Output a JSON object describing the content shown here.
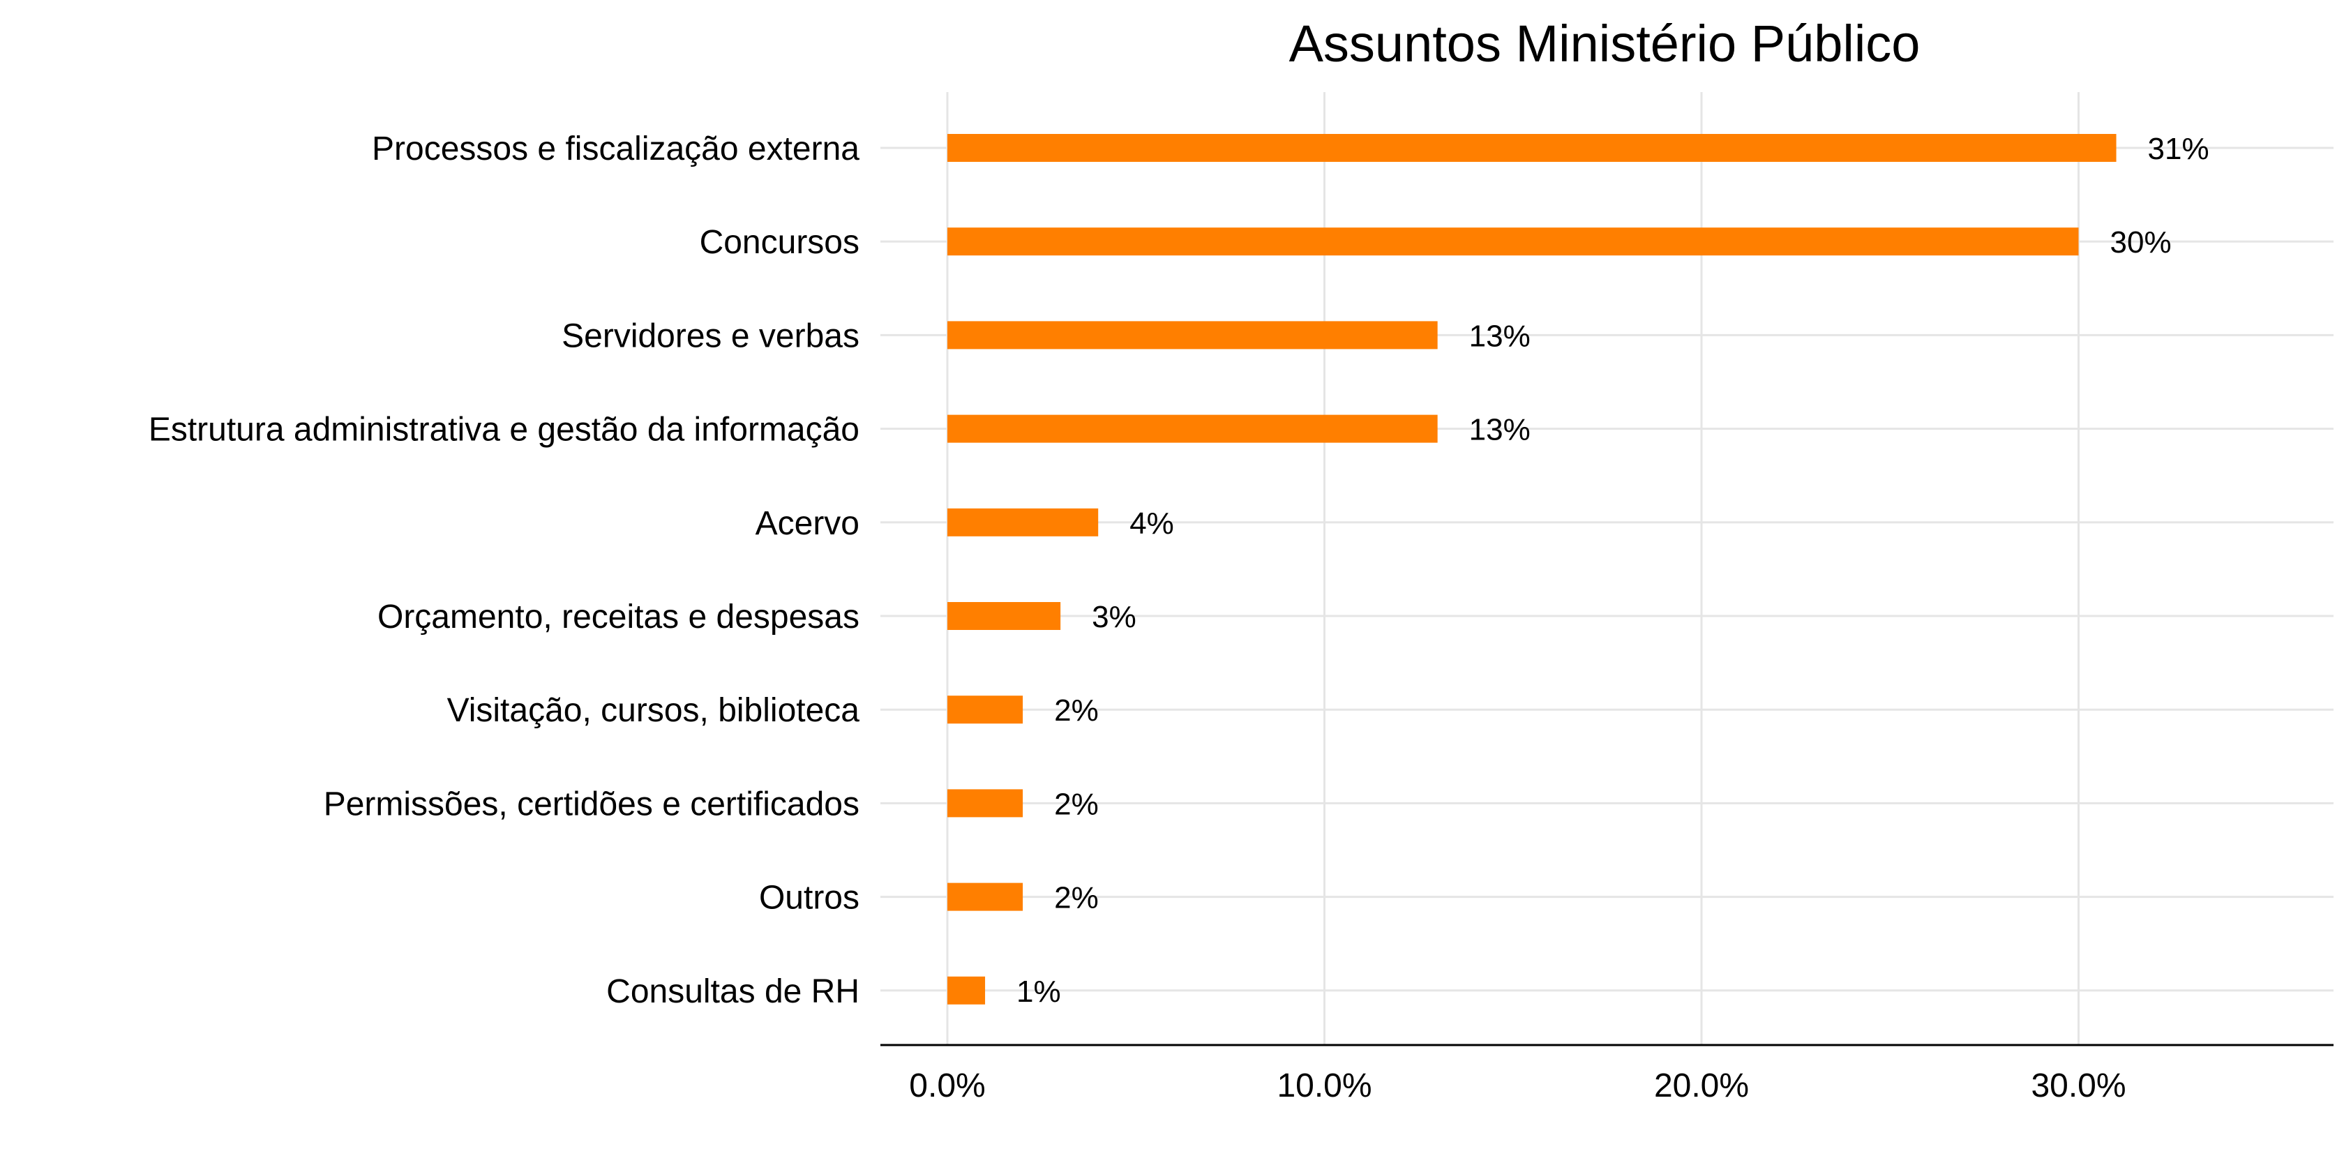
{
  "chart_data": {
    "type": "bar",
    "orientation": "horizontal",
    "title": "Assuntos Ministério Público",
    "xlabel": "",
    "ylabel": "",
    "categories": [
      "Processos e fiscalização externa",
      "Concursos",
      "Servidores e verbas",
      "Estrutura administrativa e gestão da informação",
      "Acervo",
      "Orçamento, receitas e despesas",
      "Visitação, cursos, biblioteca",
      "Permissões, certidões e certificados",
      "Outros",
      "Consultas de RH"
    ],
    "values": [
      31,
      30,
      13,
      13,
      4,
      3,
      2,
      2,
      2,
      1
    ],
    "data_labels": [
      "31%",
      "30%",
      "13%",
      "13%",
      "4%",
      "3%",
      "2%",
      "2%",
      "2%",
      "1%"
    ],
    "x_ticks": [
      0,
      10,
      20,
      30
    ],
    "x_tick_labels": [
      "0.0%",
      "10.0%",
      "20.0%",
      "30.0%"
    ],
    "xlim": [
      0,
      36.7
    ],
    "grid": true,
    "legend": "none",
    "bar_color": "#ff7f00"
  }
}
